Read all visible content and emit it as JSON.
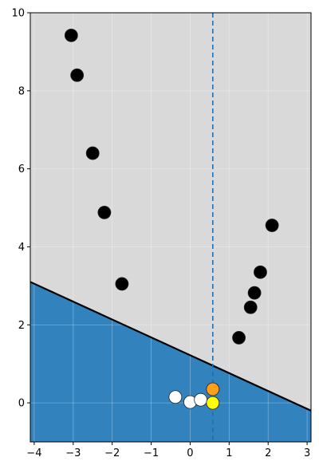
{
  "chart_data": {
    "type": "scatter",
    "title": "",
    "xlabel": "",
    "ylabel": "",
    "xlim": [
      -4.1,
      3.1
    ],
    "ylim": [
      -1.0,
      10.0
    ],
    "grid": true,
    "x_ticks": [
      -4,
      -3,
      -2,
      -1,
      0,
      1,
      2,
      3
    ],
    "y_ticks": [
      0,
      2,
      4,
      6,
      8,
      10
    ],
    "colors": {
      "background": "#d9d9d9",
      "lower_region": "#3182bd",
      "boundary_line": "#000000",
      "vertical_line": "#1f6fb4",
      "black_points": "#000000",
      "white_points": "#ffffff",
      "orange_point": "#ff9f1a",
      "yellow_point": "#ffff00"
    },
    "decision_boundary": {
      "x": [
        -4.1,
        3.1
      ],
      "y": [
        3.1,
        -0.2
      ]
    },
    "vertical_line": {
      "x": 0.58,
      "style": "dashed"
    },
    "series": [
      {
        "marker": "black",
        "x": [
          -3.05,
          -2.9,
          -2.5,
          -2.2,
          -1.75,
          1.25,
          1.55,
          1.65,
          1.8,
          2.1
        ],
        "y": [
          9.42,
          8.4,
          6.4,
          4.88,
          3.05,
          1.67,
          2.45,
          2.82,
          3.35,
          4.55
        ]
      },
      {
        "marker": "white",
        "x": [
          -0.38,
          0.0,
          0.27
        ],
        "y": [
          0.15,
          0.02,
          0.08
        ]
      },
      {
        "marker": "orange",
        "x": [
          0.58
        ],
        "y": [
          0.35
        ]
      },
      {
        "marker": "yellow",
        "x": [
          0.58
        ],
        "y": [
          0.0
        ]
      }
    ]
  }
}
